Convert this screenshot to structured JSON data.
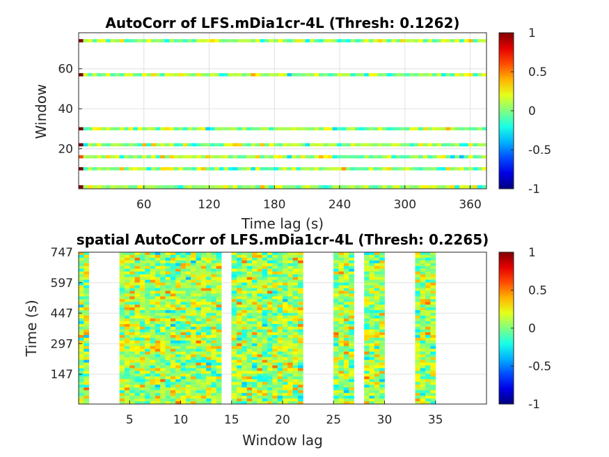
{
  "chart_data": [
    {
      "type": "heatmap",
      "title": "AutoCorr of LFS.mDia1cr-4L (Thresh: 0.1262)",
      "xlabel": "Time lag (s)",
      "ylabel": "Window",
      "xlim": [
        0,
        375
      ],
      "ylim": [
        0,
        78
      ],
      "xticks": [
        60,
        120,
        180,
        240,
        300,
        360
      ],
      "yticks": [
        20,
        40,
        60
      ],
      "grid": true,
      "colorbar": {
        "ticks": [
          -1,
          -0.5,
          0,
          0.5,
          1
        ],
        "labels": [
          "-1",
          "-0.5",
          "0",
          "0.5",
          "1"
        ],
        "colormap": "jet"
      },
      "rows": [
        {
          "window": 1,
          "value_at_zero": 1
        },
        {
          "window": 10,
          "value_at_zero": 1
        },
        {
          "window": 16,
          "value_at_zero": 0.6
        },
        {
          "window": 22,
          "value_at_zero": 1
        },
        {
          "window": 30,
          "value_at_zero": 1
        },
        {
          "window": 57,
          "value_at_zero": 1
        },
        {
          "window": 74,
          "value_at_zero": 1
        }
      ]
    },
    {
      "type": "heatmap",
      "title": "spatial AutoCorr of LFS.mDia1cr-4L (Thresh: 0.2265)",
      "xlabel": "Window lag",
      "ylabel": "Time (s)",
      "xlim": [
        0,
        40
      ],
      "ylim": [
        0,
        747
      ],
      "xticks": [
        5,
        10,
        15,
        20,
        25,
        30,
        35
      ],
      "yticks": [
        147,
        297,
        447,
        597,
        747
      ],
      "grid": true,
      "colorbar": {
        "ticks": [
          -1,
          -0.5,
          0,
          0.5,
          1
        ],
        "labels": [
          "-1",
          "-0.5",
          "0",
          "0.5",
          "1"
        ],
        "colormap": "jet"
      },
      "column_bands": [
        {
          "from": 0,
          "to": 1
        },
        {
          "from": 4,
          "to": 14
        },
        {
          "from": 15,
          "to": 22
        },
        {
          "from": 25,
          "to": 27
        },
        {
          "from": 28,
          "to": 30
        },
        {
          "from": 33,
          "to": 35
        }
      ]
    }
  ]
}
